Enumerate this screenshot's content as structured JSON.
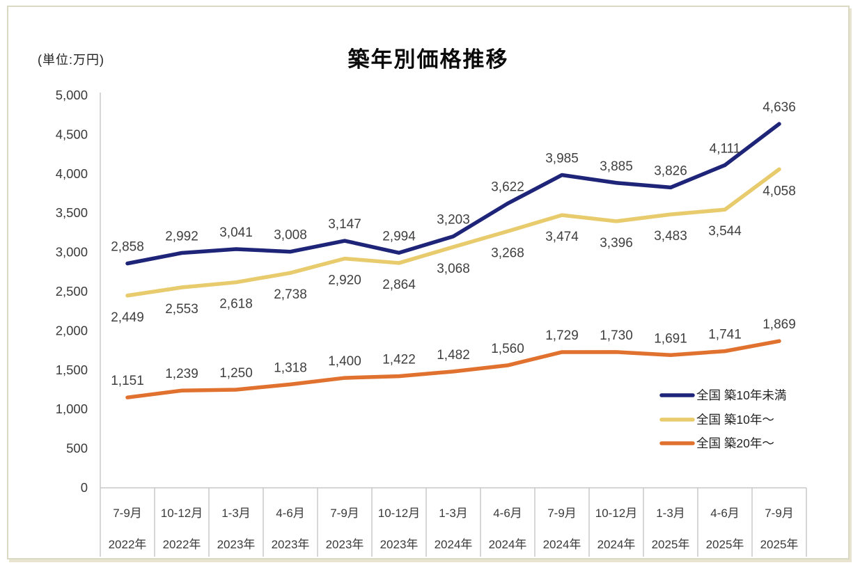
{
  "page": {
    "title": "築年別価格推移",
    "unit_label": "(単位:万円)"
  },
  "chart_data": {
    "type": "line",
    "title": "築年別価格推移",
    "unit_label": "(単位:万円)",
    "grid": "off",
    "y_axis": {
      "min": 0,
      "max": 5000,
      "step": 500,
      "ticks": [
        0,
        500,
        1000,
        1500,
        2000,
        2500,
        3000,
        3500,
        4000,
        4500,
        5000
      ]
    },
    "x_axis": {
      "quarters": [
        "7-9月",
        "10-12月",
        "1-3月",
        "4-6月",
        "7-9月",
        "10-12月",
        "1-3月",
        "4-6月",
        "7-9月",
        "10-12月",
        "1-3月",
        "4-6月",
        "7-9月"
      ],
      "years": [
        "2022年",
        "2022年",
        "2023年",
        "2023年",
        "2023年",
        "2023年",
        "2024年",
        "2024年",
        "2024年",
        "2024年",
        "2025年",
        "2025年",
        "2025年"
      ]
    },
    "series": [
      {
        "name": "全国 築10年未満",
        "color": "#1e2478",
        "label_position": "above",
        "values": [
          2858,
          2992,
          3041,
          3008,
          3147,
          2994,
          3203,
          3622,
          3985,
          3885,
          3826,
          4111,
          4636
        ]
      },
      {
        "name": "全国 築10年〜",
        "color": "#e8cb6d",
        "label_position": "below",
        "values": [
          2449,
          2553,
          2618,
          2738,
          2920,
          2864,
          3068,
          3268,
          3474,
          3396,
          3483,
          3544,
          4058
        ]
      },
      {
        "name": "全国 築20年〜",
        "color": "#e0712e",
        "label_position": "above",
        "values": [
          1151,
          1239,
          1250,
          1318,
          1400,
          1422,
          1482,
          1560,
          1729,
          1730,
          1691,
          1741,
          1869
        ]
      }
    ],
    "legend": {
      "position": "inside bottom-right",
      "entries": [
        "全国 築10年未満",
        "全国 築10年〜",
        "全国 築20年〜"
      ]
    }
  }
}
